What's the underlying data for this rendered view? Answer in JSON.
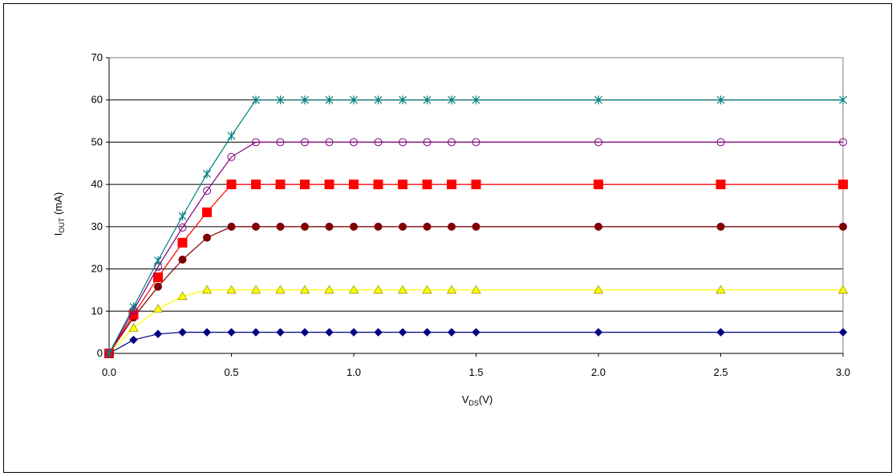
{
  "chart_data": {
    "type": "line",
    "title": "",
    "xlabel": {
      "main": "V",
      "sub": "DS",
      "suffix": "(V)"
    },
    "ylabel": {
      "main": "I",
      "sub": "OUT",
      "suffix": " (mA)"
    },
    "xlim": [
      0,
      3.0
    ],
    "ylim": [
      0,
      70
    ],
    "x_ticks": [
      "0.0",
      "0.5",
      "1.0",
      "1.5",
      "2.0",
      "2.5",
      "3.0"
    ],
    "y_ticks": [
      "0",
      "10",
      "20",
      "30",
      "40",
      "50",
      "60",
      "70"
    ],
    "grid": "horizontal",
    "legend": "none",
    "x": [
      0,
      0.1,
      0.2,
      0.3,
      0.4,
      0.5,
      0.6,
      0.7,
      0.8,
      0.9,
      1.0,
      1.1,
      1.2,
      1.3,
      1.4,
      1.5,
      2.0,
      2.5,
      3.0
    ],
    "series": [
      {
        "color": "#000080",
        "marker": "diamond",
        "values": [
          0,
          3.2,
          4.6,
          5,
          5,
          5,
          5,
          5,
          5,
          5,
          5,
          5,
          5,
          5,
          5,
          5,
          5,
          5,
          5
        ]
      },
      {
        "color": "#ffff00",
        "marker": "triangle",
        "values": [
          0,
          6,
          10.5,
          13.5,
          15,
          15,
          15,
          15,
          15,
          15,
          15,
          15,
          15,
          15,
          15,
          15,
          15,
          15,
          15
        ]
      },
      {
        "color": "#800000",
        "marker": "circle",
        "values": [
          0,
          8.5,
          15.8,
          22.2,
          27.4,
          30,
          30,
          30,
          30,
          30,
          30,
          30,
          30,
          30,
          30,
          30,
          30,
          30,
          30
        ]
      },
      {
        "color": "#ff0000",
        "marker": "square",
        "values": [
          0,
          9.2,
          18,
          26.2,
          33.4,
          40,
          40,
          40,
          40,
          40,
          40,
          40,
          40,
          40,
          40,
          40,
          40,
          40,
          40
        ]
      },
      {
        "color": "#800080",
        "marker": "open-circle",
        "values": [
          0,
          10.2,
          20.5,
          29.8,
          38.5,
          46.5,
          50,
          50,
          50,
          50,
          50,
          50,
          50,
          50,
          50,
          50,
          50,
          50,
          50
        ]
      },
      {
        "color": "#008080",
        "marker": "asterisk",
        "values": [
          0,
          11,
          22,
          32.5,
          42.5,
          51.5,
          60,
          60,
          60,
          60,
          60,
          60,
          60,
          60,
          60,
          60,
          60,
          60,
          60
        ]
      }
    ]
  }
}
